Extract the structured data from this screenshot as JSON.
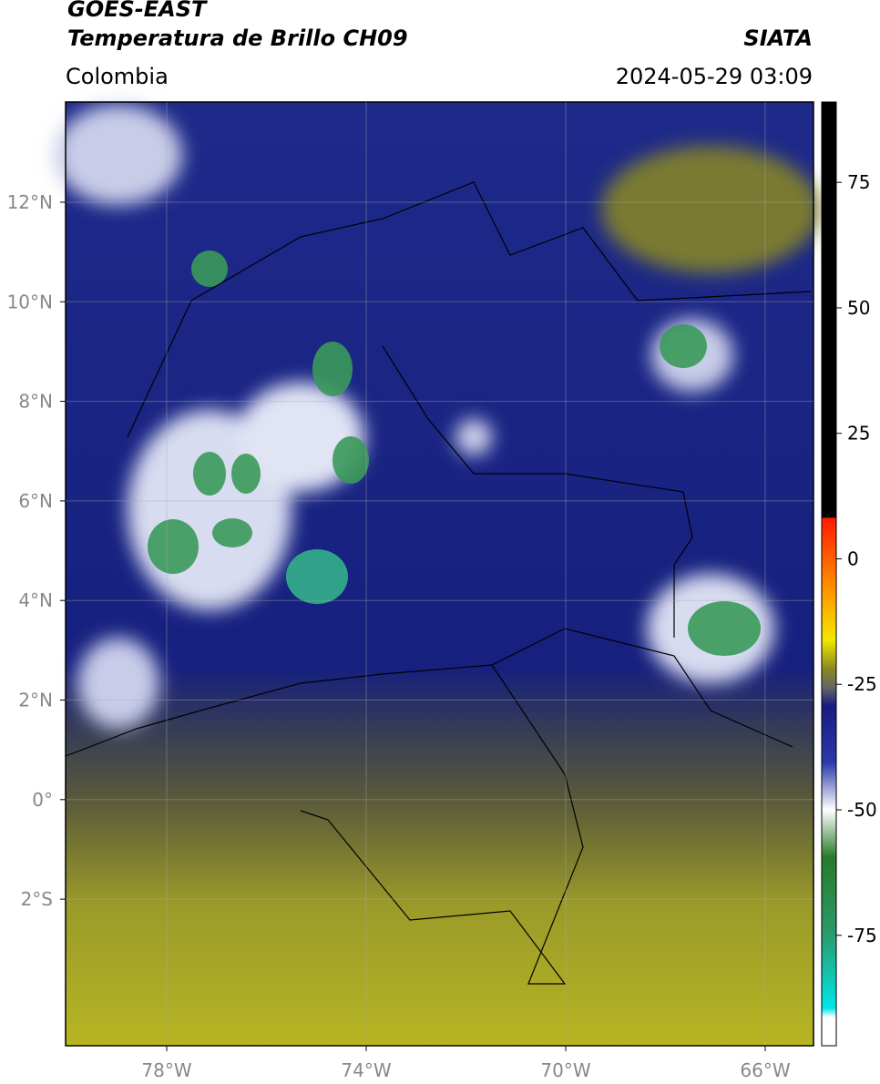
{
  "header": {
    "title_line1": "GOES-EAST",
    "title_line2": "Temperatura de Brillo CH09",
    "region": "Colombia",
    "source": "SIATA",
    "datetime": "2024-05-29 03:09"
  },
  "map": {
    "lat_ticks": [
      "12°N",
      "10°N",
      "8°N",
      "6°N",
      "4°N",
      "2°N",
      "0°",
      "2°S"
    ],
    "lon_ticks": [
      "78°W",
      "74°W",
      "70°W",
      "66°W"
    ]
  },
  "colorbar": {
    "range": [
      -97,
      91
    ],
    "ticks": [
      75,
      50,
      25,
      0,
      -25,
      -50,
      -75
    ]
  }
}
